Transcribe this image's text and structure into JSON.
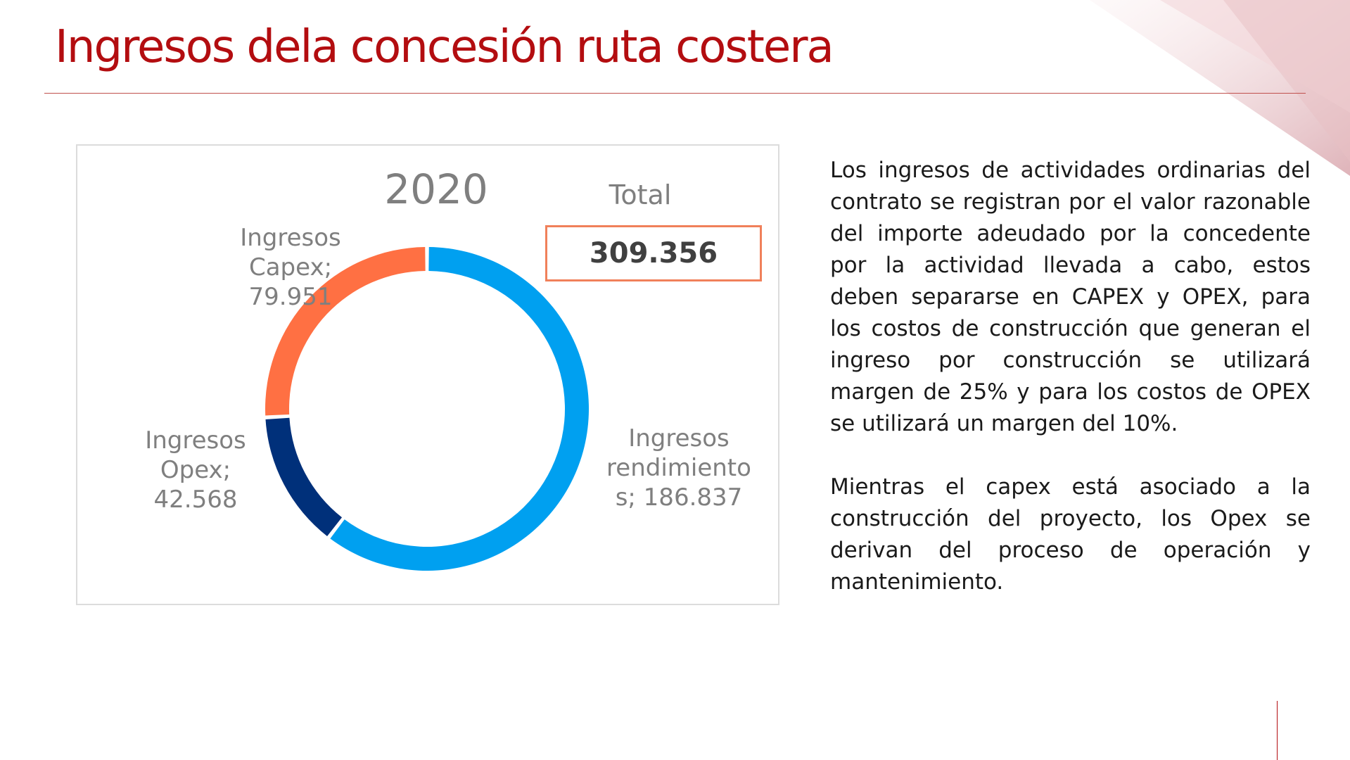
{
  "slide": {
    "title": "Ingresos dela concesión ruta costera"
  },
  "paragraphs": [
    "Los ingresos de actividades ordinarias del contrato se registran por el valor razonable del importe adeudado por la concedente por la actividad llevada a cabo, estos deben separarse en CAPEX y OPEX, para los costos de construcción que generan el ingreso por construcción se utilizará margen  de 25% y para los costos de OPEX se utilizará un margen del 10%.",
    "Mientras el capex está asociado a la construcción del proyecto, los Opex se derivan del proceso de operación y mantenimiento."
  ],
  "colors": {
    "title": "#b30d10",
    "accent_line": "#c0504d",
    "rendimientos": "#00a0f0",
    "capex": "#ff7043",
    "opex": "#00307a",
    "total_border": "#f0805a"
  },
  "chart_data": {
    "type": "pie",
    "subtype": "donut",
    "title": "2020",
    "total_label": "Total",
    "total_value": "309.356",
    "slices": [
      {
        "name": "Ingresos rendimientos",
        "value": 186.837,
        "display": "186.837",
        "label_lines": [
          "Ingresos",
          "rendimiento",
          "s;  186.837"
        ],
        "color": "#00a0f0"
      },
      {
        "name": "Ingresos Opex",
        "value": 42.568,
        "display": "42.568",
        "label_lines": [
          "Ingresos",
          "Opex;",
          "42.568"
        ],
        "color": "#00307a"
      },
      {
        "name": "Ingresos Capex",
        "value": 79.951,
        "display": "79.951",
        "label_lines": [
          "Ingresos",
          "Capex;",
          "79.951"
        ],
        "color": "#ff7043"
      }
    ],
    "legend": "none"
  }
}
